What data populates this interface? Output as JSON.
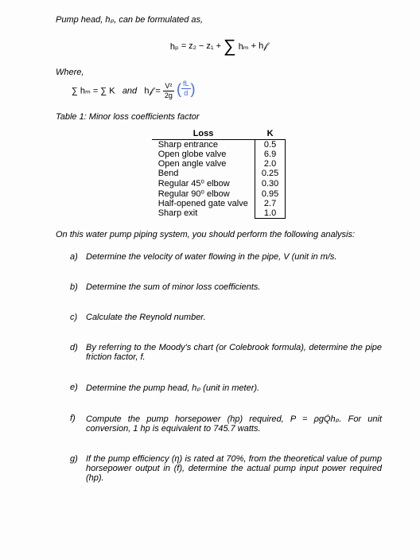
{
  "intro": "Pump head, hₚ, can be formulated as,",
  "formula_main": {
    "lhs": "hₚ",
    "eq": "=",
    "z2": "z₂",
    "minus": "−",
    "z1": "z₁",
    "plus": "+",
    "hm": "hₘ",
    "plus2": "+",
    "hf": "h𝒻"
  },
  "where_label": "Where,",
  "where_formula": {
    "part1": "∑ hₘ = ∑ K",
    "and": "and",
    "hf_eq": "h𝒻 =",
    "v2": "V²",
    "g2": "2g",
    "fL": "fL",
    "d": "d"
  },
  "table_title": "Table 1: Minor loss coefficients factor",
  "table": {
    "header_loss": "Loss",
    "header_k": "K",
    "rows": [
      {
        "loss": "Sharp entrance",
        "k": "0.5"
      },
      {
        "loss": "Open globe valve",
        "k": "6.9"
      },
      {
        "loss": "Open angle valve",
        "k": "2.0"
      },
      {
        "loss": "Bend",
        "k": "0.25"
      },
      {
        "loss": "Regular 45⁰ elbow",
        "k": "0.30"
      },
      {
        "loss": "Regular 90⁰ elbow",
        "k": "0.95"
      },
      {
        "loss": "Half-opened gate valve",
        "k": "2.7"
      },
      {
        "loss": "Sharp exit",
        "k": "1.0"
      }
    ]
  },
  "analysis_intro": "On this water pump piping system, you should perform the following analysis:",
  "questions": [
    {
      "letter": "a)",
      "text": "Determine the velocity of water flowing in the pipe, V (unit in m/s."
    },
    {
      "letter": "b)",
      "text": "Determine the sum of minor loss coefficients."
    },
    {
      "letter": "c)",
      "text": "Calculate the Reynold number."
    },
    {
      "letter": "d)",
      "text": "By referring to the Moody's chart (or Colebrook formula), determine the pipe friction factor, f."
    },
    {
      "letter": "e)",
      "text": "Determine the pump head, hₚ (unit in meter)."
    },
    {
      "letter": "f)",
      "text": "Compute the pump horsepower (hp) required, P = ρgQ̇hₚ. For unit conversion, 1 hp is equivalent to 745.7 watts."
    },
    {
      "letter": "g)",
      "text": "If the pump efficiency (η) is rated at 70%, from the theoretical value of pump horsepower output in (f), determine the actual pump input power required (hp)."
    }
  ]
}
